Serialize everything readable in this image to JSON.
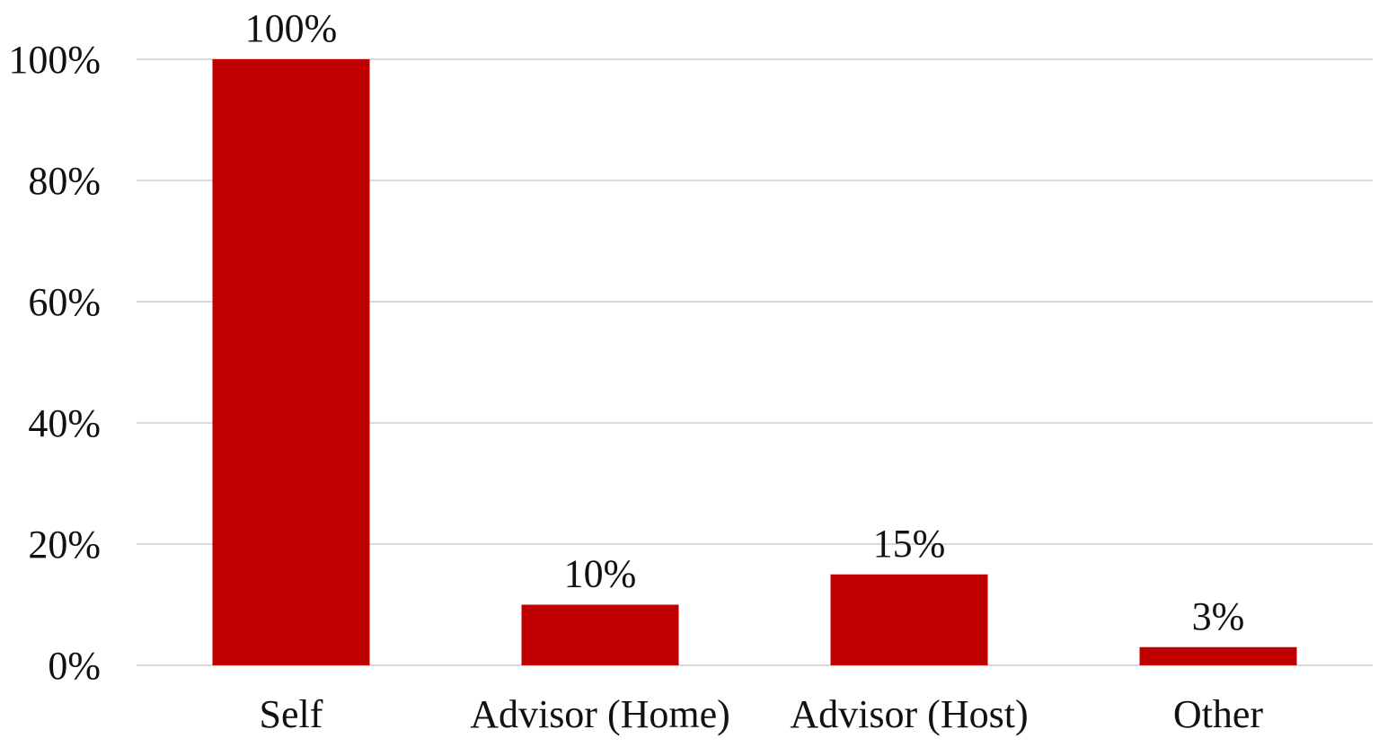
{
  "chart_data": {
    "type": "bar",
    "title": "",
    "xlabel": "",
    "ylabel": "",
    "categories": [
      "Self",
      "Advisor (Home)",
      "Advisor (Host)",
      "Other"
    ],
    "values": [
      100,
      10,
      15,
      3
    ],
    "data_labels": [
      "100%",
      "10%",
      "15%",
      "3%"
    ],
    "ylim": [
      0,
      100
    ],
    "yticks": [
      0,
      20,
      40,
      60,
      80,
      100
    ],
    "ytick_labels": [
      "0%",
      "20%",
      "40%",
      "60%",
      "80%",
      "100%"
    ],
    "grid": true,
    "legend": "none",
    "bar_color": "#C00000",
    "grid_color": "#D9D9D9"
  }
}
